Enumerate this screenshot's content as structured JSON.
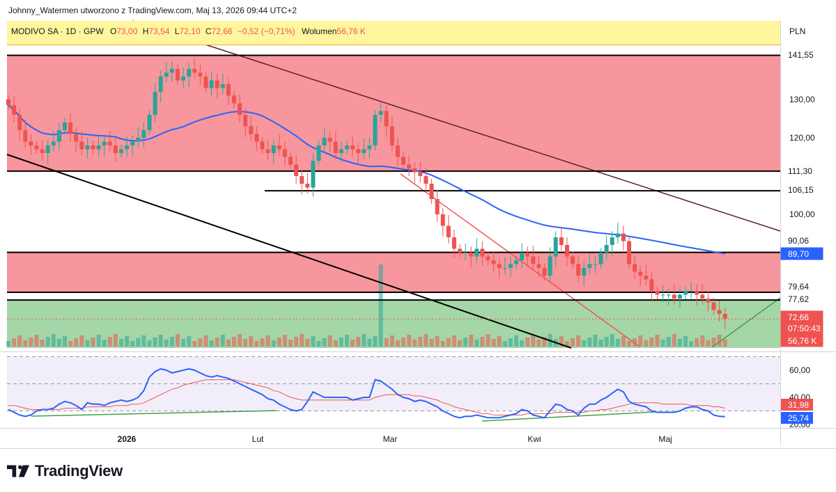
{
  "header": {
    "credit": "Johnny_Watermen utworzono z TradingView.com, Maj 13, 2026 09:44 UTC+2"
  },
  "legend": {
    "symbol": "MODIVO SA · 1D · GPW",
    "o_label": "O",
    "o_value": "73,00",
    "h_label": "H",
    "h_value": "73,54",
    "l_label": "L",
    "l_value": "72,10",
    "c_label": "C",
    "c_value": "72,66",
    "change": "−0,52 (−0,71%)",
    "volume_label": "Wolumen",
    "volume_value": "56,76 K",
    "currency": "PLN"
  },
  "colors": {
    "up": "#26a69a",
    "down": "#ef5350",
    "ma_line": "#2962ff",
    "rsi_line": "#2962ff",
    "rsi_ma": "#ef5350",
    "resistance_zone": "#f7969c",
    "support_zone": "#a5d6a7",
    "legend_bg": "#fff59d"
  },
  "chart_data": [
    {
      "type": "candlestick",
      "title": "MODIVO SA · 1D · GPW",
      "price_axis_labels": [
        "100,00",
        "120,00",
        "130,00"
      ],
      "time_axis_labels": [
        "2026",
        "Lut",
        "Mar",
        "Kwi",
        "Maj"
      ],
      "ylim": [
        77,
        145
      ],
      "price_badges": [
        {
          "label": "141,55",
          "value": 141.55,
          "style": "black-line"
        },
        {
          "label": "111,30",
          "value": 111.3,
          "style": "black-line"
        },
        {
          "label": "106,15",
          "value": 106.15,
          "style": "black-line"
        },
        {
          "label": "90,06",
          "value": 90.06,
          "style": "black-line"
        },
        {
          "label": "89,70",
          "value": 89.7,
          "style": "ma"
        },
        {
          "label": "79,64",
          "value": 79.64,
          "style": "black-line"
        },
        {
          "label": "77,62",
          "value": 77.62,
          "style": "black-line"
        },
        {
          "label": "72,66",
          "value": 72.66,
          "style": "last-price"
        },
        {
          "label": "07:50:43",
          "value": null,
          "style": "countdown"
        },
        {
          "label": "56,76 K",
          "value": null,
          "style": "volume"
        }
      ],
      "zones": [
        {
          "from": 111.3,
          "to": 141.55,
          "color": "resistance"
        },
        {
          "from": 79.64,
          "to": 90.06,
          "color": "resistance"
        }
      ],
      "close": [
        128.5,
        126,
        122,
        119,
        118,
        117,
        116,
        118,
        119,
        122,
        124,
        121,
        119,
        117,
        118,
        117,
        118,
        119,
        118,
        116,
        117,
        118,
        119,
        120,
        122,
        126,
        132,
        136,
        137,
        138,
        135,
        136,
        138,
        137,
        136,
        133,
        135,
        133,
        134,
        131,
        129,
        126,
        123,
        121,
        119,
        117,
        116,
        118,
        117,
        115,
        113,
        110,
        108,
        107,
        114,
        118,
        120,
        119,
        116,
        117,
        118,
        117,
        116,
        117,
        118,
        126,
        127,
        123,
        118,
        115,
        113,
        112,
        111,
        110,
        108,
        104,
        100,
        97,
        94,
        91,
        90,
        90,
        89,
        91,
        89,
        88,
        87,
        86,
        86,
        87,
        88,
        90,
        89,
        87,
        86,
        84,
        89,
        94,
        92,
        89,
        87,
        84,
        86,
        87,
        87,
        90,
        92,
        94,
        95,
        93,
        87,
        85,
        84,
        83,
        80,
        79,
        79,
        79,
        78,
        79,
        80,
        80,
        79,
        78,
        77,
        75,
        74,
        72.66
      ],
      "ma50_last": 89.7,
      "volume_last": "56,76 K"
    },
    {
      "type": "line",
      "title": "RSI",
      "y_axis_labels": [
        "20,00",
        "40,00",
        "60,00"
      ],
      "ylim": [
        20,
        72
      ],
      "levels": [
        70,
        50,
        30
      ],
      "series": [
        {
          "name": "",
          "values": [
            31,
            29,
            27,
            26,
            27,
            30,
            31,
            31,
            32,
            35,
            37,
            36,
            34,
            31,
            36,
            35,
            35,
            34,
            36,
            37,
            38,
            37,
            38,
            40,
            45,
            55,
            59,
            61,
            60,
            58,
            59,
            60,
            61,
            60,
            58,
            56,
            55,
            56,
            55,
            54,
            52,
            50,
            48,
            46,
            44,
            42,
            39,
            38,
            35,
            33,
            31,
            30,
            31,
            37,
            44,
            42,
            40,
            40,
            40,
            40,
            40,
            38,
            39,
            40,
            40,
            53,
            52,
            49,
            46,
            42,
            40,
            39,
            37,
            38,
            37,
            35,
            33,
            30,
            28,
            26,
            25,
            26,
            26,
            27,
            26,
            25,
            25,
            25,
            26,
            27,
            28,
            31,
            30,
            27,
            26,
            25,
            30,
            35,
            34,
            31,
            30,
            27,
            32,
            35,
            35,
            38,
            40,
            43,
            46,
            44,
            37,
            35,
            34,
            33,
            30,
            29,
            29,
            29,
            29,
            30,
            32,
            33,
            33,
            31,
            30,
            27,
            26,
            25.74
          ]
        },
        {
          "name": "",
          "values": [
            34,
            34,
            33,
            32,
            31,
            31,
            31,
            31,
            31,
            31,
            32,
            32,
            32,
            32,
            33,
            33,
            33,
            33,
            33,
            34,
            34,
            34,
            35,
            35,
            36,
            38,
            40,
            42,
            44,
            46,
            47,
            49,
            50,
            51,
            52,
            53,
            53,
            53,
            53,
            53,
            53,
            52,
            51,
            50,
            49,
            48,
            47,
            45,
            44,
            42,
            40,
            39,
            38,
            38,
            38,
            38,
            38,
            38,
            38,
            38,
            38,
            38,
            38,
            38,
            38,
            40,
            41,
            42,
            42,
            42,
            42,
            42,
            41,
            41,
            40,
            39,
            38,
            36,
            35,
            33,
            32,
            31,
            30,
            29,
            28,
            28,
            27,
            27,
            27,
            27,
            27,
            27,
            28,
            28,
            28,
            28,
            28,
            29,
            29,
            29,
            29,
            29,
            29,
            30,
            30,
            31,
            31,
            32,
            33,
            34,
            35,
            36,
            36,
            36,
            36,
            36,
            35,
            35,
            35,
            35,
            35,
            34,
            34,
            34,
            34,
            33,
            33,
            31.98
          ]
        }
      ],
      "badges": [
        {
          "label": "31,98",
          "value": 31.98
        },
        {
          "label": "25,74",
          "value": 25.74
        }
      ]
    }
  ],
  "footer": {
    "brand": "TradingView"
  }
}
